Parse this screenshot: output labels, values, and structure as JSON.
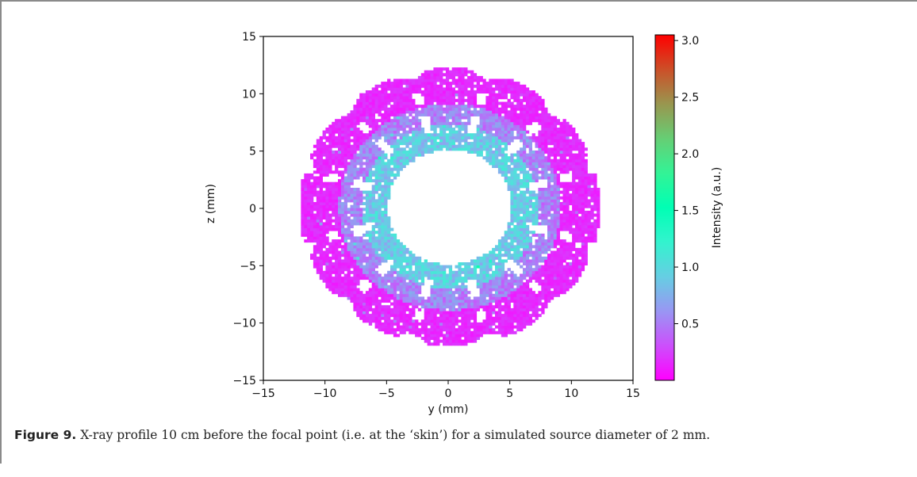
{
  "chart_data": {
    "type": "heatmap",
    "title": "",
    "xlabel": "y (mm)",
    "ylabel": "z (mm)",
    "xlim": [
      -15,
      15
    ],
    "ylim": [
      -15,
      15
    ],
    "xticks": [
      "−15",
      "−10",
      "−5",
      "0",
      "5",
      "10",
      "15"
    ],
    "xtick_values": [
      -15,
      -10,
      -5,
      0,
      5,
      10,
      15
    ],
    "yticks": [
      "15",
      "10",
      "5",
      "0",
      "−5",
      "−10",
      "−15"
    ],
    "ytick_values": [
      15,
      10,
      5,
      0,
      -5,
      -10,
      -15
    ],
    "colorbar": {
      "label": "Intensity (a.u.)",
      "range": [
        0.0,
        3.05
      ],
      "ticks": [
        "0.5",
        "1.0",
        "1.5",
        "2.0",
        "2.5",
        "3.0"
      ],
      "tick_values": [
        0.5,
        1.0,
        1.5,
        2.0,
        2.5,
        3.0
      ],
      "colormap": "rainbow"
    },
    "grid": false,
    "distribution": {
      "shape": "annulus",
      "inner_radius_mm": 5,
      "outer_radius_mm": 12.2,
      "inner_ring_intensity": 0.9,
      "outer_ring_intensity": 0.15
    }
  },
  "caption": {
    "label": "Figure 9.",
    "text": "X-ray profile 10 cm before the focal point (i.e. at the ‘skin’) for a simulated source diameter of 2 mm."
  }
}
